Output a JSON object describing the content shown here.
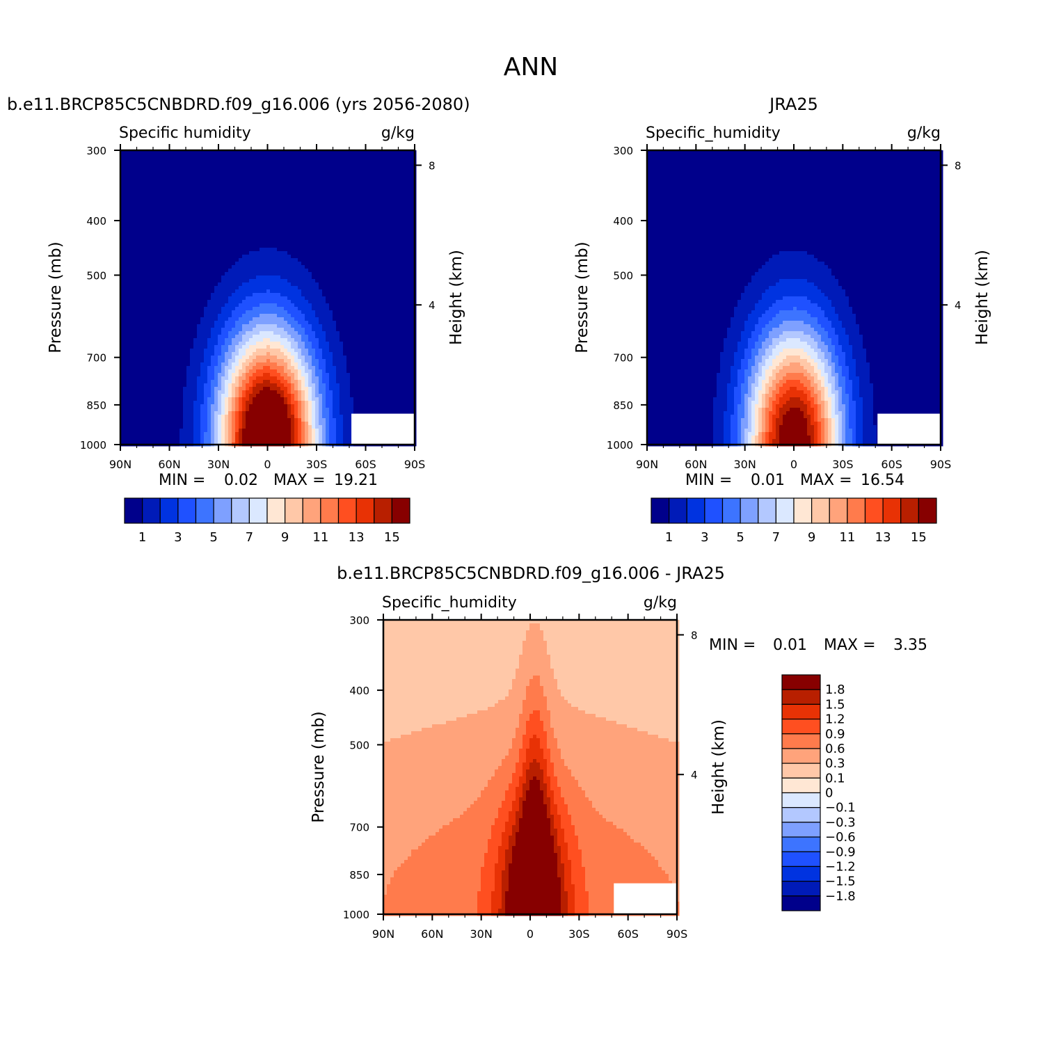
{
  "figure_title": "ANN",
  "chart_data": [
    {
      "type": "heatmap",
      "subtype": "latitude-pressure filled contour",
      "title": "b.e11.BRCP85C5CNBDRD.f09_g16.006 (yrs 2056-2080)",
      "variable_label": "Specific humidity",
      "units": "g/kg",
      "xlabel": "",
      "ylabel": "Pressure (mb)",
      "y2label": "Height (km)",
      "x_ticks": [
        "90N",
        "60N",
        "30N",
        "0",
        "30S",
        "60S",
        "90S"
      ],
      "x_range": [
        90,
        -90
      ],
      "y_ticks": [
        "300",
        "400",
        "500",
        "700",
        "850",
        "1000"
      ],
      "y_range": [
        1000,
        300
      ],
      "y_scale": "log",
      "y2_ticks": [
        "8",
        "4"
      ],
      "stats": {
        "min_label": "MIN =",
        "min": "0.02",
        "max_label": "MAX =",
        "max": "19.21"
      },
      "peak": {
        "lat": 0,
        "value": 19.21,
        "sx": 30,
        "sy": 0.72
      },
      "colorbar": {
        "orientation": "horizontal",
        "tick_labels": [
          "1",
          "3",
          "5",
          "7",
          "9",
          "11",
          "13",
          "15"
        ],
        "colors": [
          "#00008b",
          "#001bb8",
          "#0033e0",
          "#1f51ff",
          "#3d74ff",
          "#7ea0ff",
          "#b3c8ff",
          "#dbe8ff",
          "#ffe7d4",
          "#ffc8a8",
          "#ffa37b",
          "#ff7b4c",
          "#ff4f20",
          "#e83205",
          "#b81f00",
          "#870000"
        ]
      }
    },
    {
      "type": "heatmap",
      "subtype": "latitude-pressure filled contour",
      "title": "JRA25",
      "variable_label": "Specific_humidity",
      "units": "g/kg",
      "xlabel": "",
      "ylabel": "Pressure (mb)",
      "y2label": "Height (km)",
      "x_ticks": [
        "90N",
        "60N",
        "30N",
        "0",
        "30S",
        "60S",
        "90S"
      ],
      "x_range": [
        90,
        -90
      ],
      "y_ticks": [
        "300",
        "400",
        "500",
        "700",
        "850",
        "1000"
      ],
      "y_range": [
        1000,
        300
      ],
      "y_scale": "log",
      "y2_ticks": [
        "8",
        "4"
      ],
      "stats": {
        "min_label": "MIN =",
        "min": "0.01",
        "max_label": "MAX =",
        "max": "16.54"
      },
      "peak": {
        "lat": 0,
        "value": 16.54,
        "sx": 29,
        "sy": 0.7
      },
      "colorbar": {
        "orientation": "horizontal",
        "tick_labels": [
          "1",
          "3",
          "5",
          "7",
          "9",
          "11",
          "13",
          "15"
        ],
        "colors": [
          "#00008b",
          "#001bb8",
          "#0033e0",
          "#1f51ff",
          "#3d74ff",
          "#7ea0ff",
          "#b3c8ff",
          "#dbe8ff",
          "#ffe7d4",
          "#ffc8a8",
          "#ffa37b",
          "#ff7b4c",
          "#ff4f20",
          "#e83205",
          "#b81f00",
          "#870000"
        ]
      }
    },
    {
      "type": "heatmap",
      "subtype": "latitude-pressure filled contour difference",
      "title": "b.e11.BRCP85C5CNBDRD.f09_g16.006 - JRA25",
      "variable_label": "Specific_humidity",
      "units": "g/kg",
      "xlabel": "",
      "ylabel": "Pressure (mb)",
      "y2label": "Height (km)",
      "x_ticks": [
        "90N",
        "60N",
        "30N",
        "0",
        "30S",
        "60S",
        "90S"
      ],
      "x_range": [
        90,
        -90
      ],
      "y_ticks": [
        "300",
        "400",
        "500",
        "700",
        "850",
        "1000"
      ],
      "y_range": [
        1000,
        300
      ],
      "y_scale": "log",
      "y2_ticks": [
        "8",
        "4"
      ],
      "stats": {
        "min_label": "MIN =",
        "min": "0.01",
        "max_label": "MAX =",
        "max": "3.35"
      },
      "colorbar": {
        "orientation": "vertical",
        "tick_labels": [
          "1.8",
          "1.5",
          "1.2",
          "0.9",
          "0.6",
          "0.3",
          "0.1",
          "0",
          "-0.1",
          "-0.3",
          "-0.6",
          "-0.9",
          "-1.2",
          "-1.5",
          "-1.8"
        ],
        "colors_top_to_bottom": [
          "#870000",
          "#b81f00",
          "#e83205",
          "#ff4f20",
          "#ff7b4c",
          "#ffa37b",
          "#ffc8a8",
          "#ffe7d4",
          "#dbe8ff",
          "#b3c8ff",
          "#7ea0ff",
          "#3d74ff",
          "#1f51ff",
          "#0033e0",
          "#001bb8",
          "#00008b"
        ]
      }
    }
  ]
}
